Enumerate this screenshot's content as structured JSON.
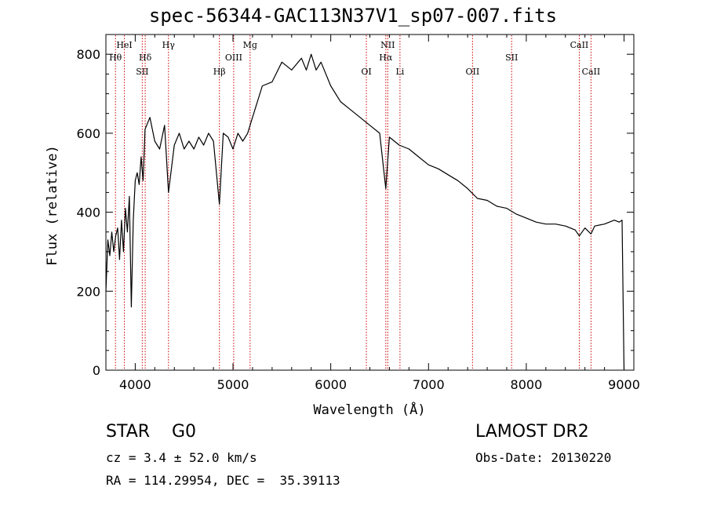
{
  "title": "spec-56344-GAC113N37V1_sp07-007.fits",
  "chart_data": {
    "type": "line",
    "xlabel": "Wavelength (Å)",
    "ylabel": "Flux (relative)",
    "xlim": [
      3700,
      9100
    ],
    "ylim": [
      0,
      850
    ],
    "xticks": [
      4000,
      5000,
      6000,
      7000,
      8000,
      9000
    ],
    "yticks": [
      0,
      200,
      400,
      600,
      800
    ],
    "grid": false,
    "series": [
      {
        "x": [
          3700,
          3720,
          3740,
          3760,
          3780,
          3800,
          3820,
          3840,
          3860,
          3880,
          3900,
          3920,
          3940,
          3960,
          3980,
          4000,
          4020,
          4040,
          4060,
          4080,
          4100,
          4150,
          4200,
          4250,
          4300,
          4340,
          4400,
          4450,
          4500,
          4550,
          4600,
          4650,
          4700,
          4750,
          4800,
          4861,
          4900,
          4950,
          5000,
          5050,
          5100,
          5150,
          5200,
          5300,
          5400,
          5500,
          5600,
          5700,
          5750,
          5800,
          5850,
          5900,
          6000,
          6100,
          6200,
          6300,
          6400,
          6500,
          6563,
          6600,
          6700,
          6800,
          6900,
          7000,
          7100,
          7200,
          7300,
          7400,
          7500,
          7600,
          7700,
          7800,
          7900,
          8000,
          8100,
          8200,
          8300,
          8400,
          8500,
          8542,
          8600,
          8662,
          8700,
          8800,
          8900,
          8950,
          8980,
          9000
        ],
        "values": [
          200,
          330,
          290,
          350,
          300,
          340,
          360,
          280,
          380,
          300,
          410,
          350,
          440,
          160,
          380,
          480,
          500,
          470,
          540,
          480,
          610,
          640,
          580,
          560,
          620,
          450,
          570,
          600,
          560,
          580,
          560,
          590,
          570,
          600,
          580,
          420,
          600,
          590,
          560,
          600,
          580,
          600,
          640,
          720,
          730,
          780,
          760,
          790,
          760,
          800,
          760,
          780,
          720,
          680,
          660,
          640,
          620,
          600,
          460,
          590,
          570,
          560,
          540,
          520,
          510,
          495,
          480,
          460,
          435,
          430,
          415,
          410,
          395,
          385,
          375,
          370,
          370,
          365,
          355,
          340,
          360,
          345,
          365,
          370,
          380,
          375,
          380,
          0
        ]
      }
    ],
    "lines": [
      {
        "label": "Hθ",
        "x": 3798,
        "row": 2
      },
      {
        "label": "HeI",
        "x": 3889,
        "row": 1
      },
      {
        "label": "SII",
        "x": 4072,
        "row": 3
      },
      {
        "label": "Hδ",
        "x": 4102,
        "row": 2
      },
      {
        "label": "Hγ",
        "x": 4340,
        "row": 1
      },
      {
        "label": "Hβ",
        "x": 4861,
        "row": 3
      },
      {
        "label": "OIII",
        "x": 5007,
        "row": 2
      },
      {
        "label": "Mg",
        "x": 5175,
        "row": 1
      },
      {
        "label": "OI",
        "x": 6364,
        "row": 3
      },
      {
        "label": "Hα",
        "x": 6563,
        "row": 2
      },
      {
        "label": "NII",
        "x": 6583,
        "row": 1
      },
      {
        "label": "Li",
        "x": 6708,
        "row": 3
      },
      {
        "label": "OII",
        "x": 7450,
        "row": 3
      },
      {
        "label": "SII",
        "x": 7850,
        "row": 2
      },
      {
        "label": "CaII",
        "x": 8542,
        "row": 1
      },
      {
        "label": "CaII",
        "x": 8662,
        "row": 3
      }
    ]
  },
  "info": {
    "class_line": "STAR    G0",
    "survey": "LAMOST DR2",
    "cz": "cz = 3.4 ± 52.0 km/s",
    "obs_date": "Obs-Date: 20130220",
    "radec": "RA = 114.29954, DEC =  35.39113"
  },
  "colors": {
    "spectrum": "#000000",
    "line_marker": "#cc0000",
    "axes": "#000000"
  }
}
